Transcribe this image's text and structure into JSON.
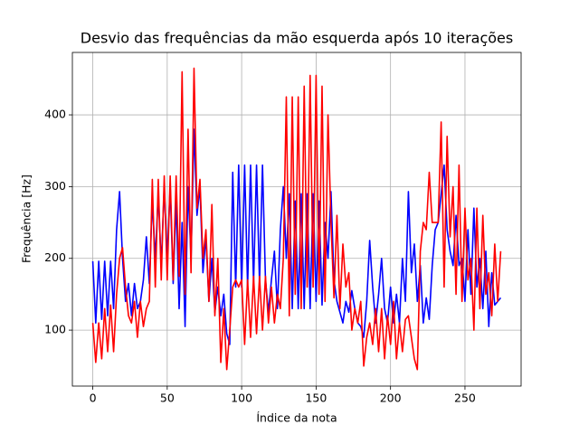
{
  "chart_data": {
    "type": "line",
    "title": "Desvio das frequências da mão esquerda após 10 iterações",
    "x_label": "Índice da nota",
    "y_label": "Frequência [Hz]",
    "x": [
      0,
      2,
      4,
      6,
      8,
      10,
      12,
      14,
      16,
      18,
      20,
      22,
      24,
      26,
      28,
      30,
      32,
      34,
      36,
      38,
      40,
      42,
      44,
      46,
      48,
      50,
      52,
      54,
      56,
      58,
      60,
      62,
      64,
      66,
      68,
      70,
      72,
      74,
      76,
      78,
      80,
      82,
      84,
      86,
      88,
      90,
      92,
      94,
      96,
      98,
      100,
      102,
      104,
      106,
      108,
      110,
      112,
      114,
      116,
      118,
      120,
      122,
      124,
      126,
      128,
      130,
      132,
      134,
      136,
      138,
      140,
      142,
      144,
      146,
      148,
      150,
      152,
      154,
      156,
      158,
      160,
      162,
      164,
      166,
      168,
      170,
      172,
      174,
      176,
      178,
      180,
      182,
      184,
      186,
      188,
      190,
      192,
      194,
      196,
      198,
      200,
      202,
      204,
      206,
      208,
      210,
      212,
      214,
      216,
      218,
      220,
      222,
      224,
      226,
      228,
      230,
      232,
      234,
      236,
      238,
      240,
      242,
      244,
      246,
      248,
      250,
      252,
      254,
      256,
      258,
      260,
      262,
      264,
      266,
      268,
      270,
      272,
      274
    ],
    "series": [
      {
        "color": "#0000ff",
        "values": [
          196,
          110,
          196,
          115,
          196,
          120,
          196,
          130,
          240,
          293,
          200,
          140,
          165,
          120,
          165,
          130,
          140,
          170,
          230,
          165,
          280,
          200,
          290,
          190,
          300,
          200,
          300,
          165,
          280,
          130,
          250,
          105,
          300,
          200,
          380,
          260,
          300,
          180,
          230,
          140,
          200,
          125,
          160,
          120,
          150,
          95,
          80,
          320,
          160,
          330,
          160,
          330,
          160,
          330,
          165,
          330,
          165,
          330,
          170,
          125,
          170,
          210,
          130,
          240,
          300,
          200,
          290,
          130,
          280,
          130,
          290,
          130,
          290,
          130,
          290,
          140,
          280,
          135,
          250,
          200,
          293,
          170,
          140,
          125,
          110,
          140,
          125,
          155,
          130,
          110,
          105,
          90,
          140,
          225,
          160,
          110,
          150,
          200,
          130,
          110,
          160,
          110,
          150,
          110,
          200,
          140,
          293,
          180,
          220,
          140,
          190,
          110,
          145,
          115,
          190,
          240,
          250,
          290,
          330,
          240,
          210,
          190,
          260,
          190,
          200,
          140,
          240,
          150,
          270,
          160,
          200,
          130,
          210,
          105,
          180,
          135,
          140,
          145
        ]
      },
      {
        "color": "#ff0000",
        "values": [
          110,
          55,
          110,
          60,
          130,
          70,
          135,
          70,
          150,
          200,
          215,
          160,
          120,
          110,
          140,
          90,
          140,
          105,
          130,
          140,
          310,
          160,
          310,
          170,
          315,
          170,
          315,
          170,
          315,
          175,
          460,
          150,
          380,
          180,
          465,
          270,
          310,
          200,
          240,
          140,
          275,
          120,
          200,
          55,
          130,
          45,
          100,
          160,
          170,
          160,
          170,
          80,
          170,
          90,
          175,
          95,
          175,
          100,
          175,
          110,
          160,
          110,
          150,
          130,
          200,
          425,
          120,
          425,
          150,
          425,
          130,
          440,
          160,
          455,
          160,
          455,
          150,
          440,
          140,
          400,
          250,
          145,
          260,
          130,
          220,
          160,
          180,
          100,
          130,
          110,
          140,
          50,
          90,
          110,
          80,
          130,
          70,
          130,
          60,
          120,
          80,
          140,
          60,
          110,
          70,
          115,
          120,
          90,
          60,
          45,
          210,
          250,
          240,
          320,
          250,
          250,
          250,
          390,
          160,
          370,
          230,
          300,
          150,
          330,
          140,
          270,
          170,
          200,
          100,
          270,
          130,
          260,
          150,
          180,
          120,
          220,
          140,
          210
        ]
      }
    ],
    "xlim": [
      -13.7,
      287.7
    ],
    "ylim": [
      22,
      487
    ],
    "xticks": [
      0,
      50,
      100,
      150,
      200,
      250
    ],
    "yticks": [
      100,
      200,
      300,
      400
    ],
    "grid": true
  }
}
